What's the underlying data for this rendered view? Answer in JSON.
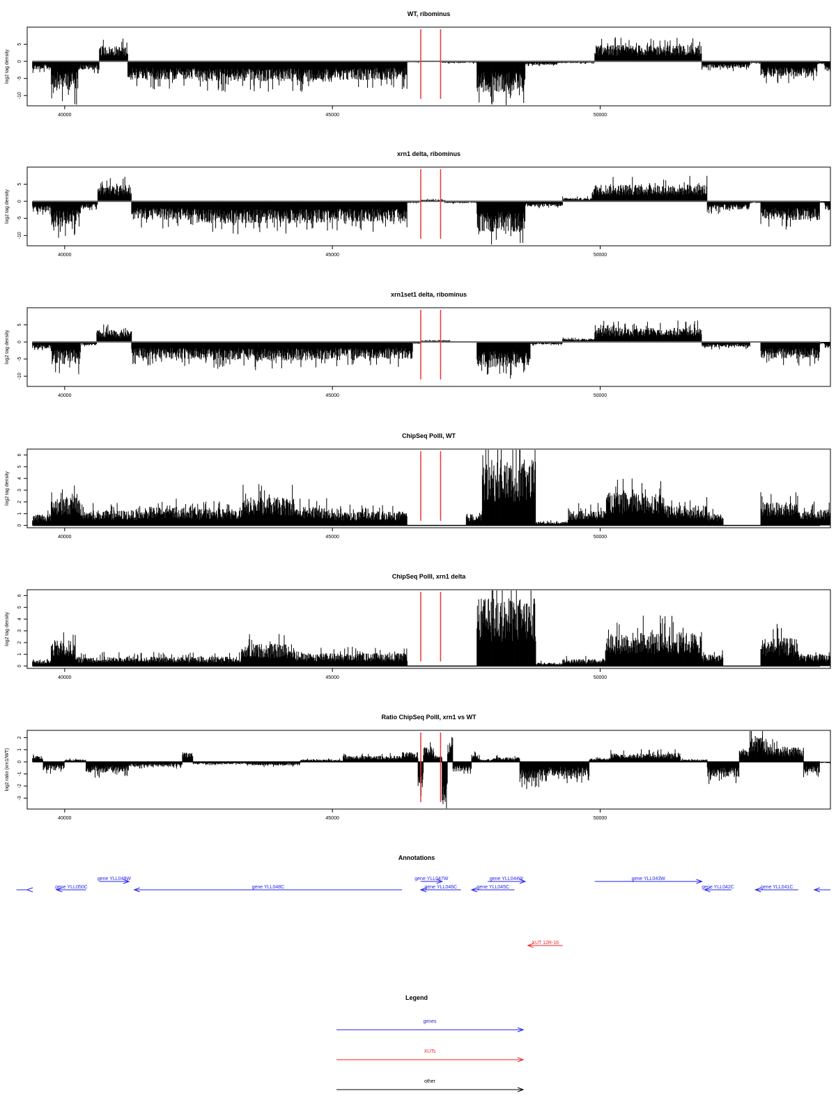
{
  "colors": {
    "signal": "#000000",
    "marker": "#ee3333",
    "genes": "#2222ee",
    "xuts": "#ee2222",
    "other": "#000000",
    "baseline": "#666666"
  },
  "chart_data": [
    {
      "type": "area",
      "title": "WT, ribominus",
      "ylabel": "log2 tag density",
      "xlim": [
        39300,
        54300
      ],
      "ylim": [
        -13,
        10
      ],
      "yticks": [
        "5",
        "0",
        "-5",
        "-10"
      ],
      "ytick_values": [
        5,
        0,
        -5,
        -10
      ],
      "xticks": [
        "40000",
        "45000",
        "50000"
      ],
      "xtick_values": [
        40000,
        45000,
        50000
      ],
      "marker_lines": [
        46650,
        47020
      ],
      "x_range": [
        39400,
        54400
      ],
      "segments": [
        [
          39400,
          39750,
          -2.5
        ],
        [
          39750,
          40250,
          -8.5
        ],
        [
          40250,
          40650,
          -2.5
        ],
        [
          40650,
          41180,
          4.5
        ],
        [
          41180,
          42500,
          -5.5
        ],
        [
          42500,
          45000,
          -6
        ],
        [
          45000,
          46400,
          -5.5
        ],
        [
          46400,
          46650,
          -0.3
        ],
        [
          46650,
          47050,
          0
        ],
        [
          47050,
          47700,
          -0.5
        ],
        [
          47700,
          48600,
          -9
        ],
        [
          48600,
          49200,
          -1
        ],
        [
          49200,
          49900,
          -0.5
        ],
        [
          49900,
          51900,
          4.8
        ],
        [
          51900,
          52800,
          -2
        ],
        [
          52800,
          53000,
          -0.5
        ],
        [
          53000,
          54050,
          -4.5
        ],
        [
          54050,
          54200,
          -0.8
        ],
        [
          54200,
          54400,
          -3
        ]
      ]
    },
    {
      "type": "area",
      "title": "xrn1 delta, ribominus",
      "ylabel": "log2 tag density",
      "xlim": [
        39300,
        54300
      ],
      "ylim": [
        -13,
        10
      ],
      "yticks": [
        "5",
        "0",
        "-5",
        "-10"
      ],
      "ytick_values": [
        5,
        0,
        -5,
        -10
      ],
      "xticks": [
        "40000",
        "45000",
        "50000"
      ],
      "xtick_values": [
        40000,
        45000,
        50000
      ],
      "marker_lines": [
        46650,
        47020
      ],
      "x_range": [
        39400,
        54400
      ],
      "segments": [
        [
          39400,
          39750,
          -3.5
        ],
        [
          39750,
          40300,
          -7.5
        ],
        [
          40300,
          40620,
          -2
        ],
        [
          40620,
          41250,
          4.8
        ],
        [
          41250,
          42500,
          -5.5
        ],
        [
          42500,
          45000,
          -6.5
        ],
        [
          45000,
          46400,
          -6
        ],
        [
          46400,
          46650,
          -0.5
        ],
        [
          46650,
          47100,
          0.5
        ],
        [
          47100,
          47700,
          -0.5
        ],
        [
          47700,
          48600,
          -9
        ],
        [
          48600,
          49300,
          -1.5
        ],
        [
          49300,
          49850,
          1
        ],
        [
          49850,
          52000,
          5
        ],
        [
          52000,
          52800,
          -2.5
        ],
        [
          52800,
          53000,
          -0.5
        ],
        [
          53000,
          54100,
          -5.5
        ],
        [
          54100,
          54200,
          -0.5
        ],
        [
          54200,
          54400,
          -2.5
        ]
      ]
    },
    {
      "type": "area",
      "title": "xrn1set1 delta, ribominus",
      "ylabel": "log2 tag density",
      "xlim": [
        39300,
        54300
      ],
      "ylim": [
        -13,
        10
      ],
      "yticks": [
        "5",
        "0",
        "-5",
        "-10"
      ],
      "ytick_values": [
        5,
        0,
        -5,
        -10
      ],
      "xticks": [
        "40000",
        "45000",
        "50000"
      ],
      "xtick_values": [
        40000,
        45000,
        50000
      ],
      "marker_lines": [
        46650,
        47020
      ],
      "x_range": [
        39400,
        54400
      ],
      "segments": [
        [
          39400,
          39750,
          -2
        ],
        [
          39750,
          40300,
          -6.5
        ],
        [
          40300,
          40600,
          -1
        ],
        [
          40600,
          41250,
          3.5
        ],
        [
          41250,
          42500,
          -5
        ],
        [
          42500,
          45000,
          -5.5
        ],
        [
          45000,
          46500,
          -5
        ],
        [
          46500,
          46650,
          -0.5
        ],
        [
          46650,
          47200,
          0.5
        ],
        [
          47200,
          47700,
          0
        ],
        [
          47700,
          48700,
          -7.5
        ],
        [
          48700,
          49300,
          -0.8
        ],
        [
          49300,
          49900,
          1
        ],
        [
          49900,
          51900,
          4.2
        ],
        [
          51900,
          52800,
          -1.5
        ],
        [
          52800,
          53000,
          0
        ],
        [
          53000,
          54100,
          -5
        ],
        [
          54100,
          54200,
          -0.5
        ],
        [
          54200,
          54400,
          -2
        ]
      ]
    },
    {
      "type": "area",
      "title": "ChipSeq PolII, WT",
      "ylabel": "log2 tag density",
      "xlim": [
        39300,
        54300
      ],
      "ylim": [
        -0.2,
        6.5
      ],
      "yticks": [
        "0",
        "1",
        "2",
        "3",
        "4",
        "5",
        "6"
      ],
      "ytick_values": [
        0,
        1,
        2,
        3,
        4,
        5,
        6
      ],
      "xticks": [
        "40000",
        "45000",
        "50000"
      ],
      "xtick_values": [
        40000,
        45000,
        50000
      ],
      "marker_lines": [
        46650,
        47020
      ],
      "x_range": [
        39400,
        54400
      ],
      "segments": [
        [
          39400,
          39750,
          1
        ],
        [
          39750,
          40300,
          2.5
        ],
        [
          40300,
          41500,
          1.3
        ],
        [
          41500,
          42500,
          1.6
        ],
        [
          42500,
          43300,
          1.4
        ],
        [
          43300,
          44300,
          2.4
        ],
        [
          44300,
          45000,
          1.6
        ],
        [
          45000,
          46400,
          1.2
        ],
        [
          46400,
          47500,
          0
        ],
        [
          47500,
          47800,
          1
        ],
        [
          47800,
          48800,
          5.6
        ],
        [
          48800,
          49400,
          0.3
        ],
        [
          49400,
          50100,
          1.3
        ],
        [
          50100,
          51200,
          2.8
        ],
        [
          51200,
          52000,
          1.7
        ],
        [
          52000,
          52300,
          1
        ],
        [
          52300,
          53000,
          0
        ],
        [
          53000,
          53700,
          2
        ],
        [
          53700,
          54400,
          1.4
        ]
      ]
    },
    {
      "type": "area",
      "title": "ChipSeq PolII, xrn1 delta",
      "ylabel": "log2 tag density",
      "xlim": [
        39300,
        54300
      ],
      "ylim": [
        -0.2,
        6.5
      ],
      "yticks": [
        "0",
        "1",
        "2",
        "3",
        "4",
        "5",
        "6"
      ],
      "ytick_values": [
        0,
        1,
        2,
        3,
        4,
        5,
        6
      ],
      "xticks": [
        "40000",
        "45000",
        "50000"
      ],
      "xtick_values": [
        40000,
        45000,
        50000
      ],
      "marker_lines": [
        46650,
        47020
      ],
      "x_range": [
        39400,
        54400
      ],
      "segments": [
        [
          39400,
          39750,
          0.5
        ],
        [
          39750,
          40200,
          2.2
        ],
        [
          40200,
          43300,
          0.8
        ],
        [
          43300,
          44300,
          1.9
        ],
        [
          44300,
          46400,
          1.1
        ],
        [
          46400,
          47700,
          0
        ],
        [
          47700,
          48800,
          5.8
        ],
        [
          48800,
          49300,
          0.3
        ],
        [
          49300,
          50100,
          0.6
        ],
        [
          50100,
          51900,
          2.9
        ],
        [
          51900,
          52300,
          1
        ],
        [
          52300,
          53000,
          0
        ],
        [
          53000,
          53700,
          2.4
        ],
        [
          53700,
          54400,
          1
        ]
      ]
    },
    {
      "type": "area",
      "title": "Ratio ChipSeq PolII, xrn1 vs WT",
      "ylabel": "log2 ratio (xrn1/WT)",
      "xlim": [
        39300,
        54300
      ],
      "ylim": [
        -3.9,
        2.6
      ],
      "yticks": [
        "2",
        "1",
        "0",
        "-1",
        "-2",
        "-3"
      ],
      "ytick_values": [
        2,
        1,
        0,
        -1,
        -2,
        -3
      ],
      "xticks": [
        "40000",
        "45000",
        "50000"
      ],
      "xtick_values": [
        40000,
        45000,
        50000
      ],
      "marker_lines": [
        46650,
        47020
      ],
      "x_range": [
        39400,
        54400
      ],
      "segments": [
        [
          39400,
          39600,
          0.5
        ],
        [
          39600,
          40000,
          -0.7
        ],
        [
          40000,
          40400,
          0.2
        ],
        [
          40400,
          41200,
          -0.9
        ],
        [
          41200,
          42200,
          -0.4
        ],
        [
          42200,
          42400,
          0.8
        ],
        [
          42400,
          43500,
          -0.2
        ],
        [
          43500,
          44400,
          -0.3
        ],
        [
          44400,
          45200,
          0.2
        ],
        [
          45200,
          46300,
          0.5
        ],
        [
          46300,
          46600,
          0.8
        ],
        [
          46600,
          46700,
          -2.3
        ],
        [
          46700,
          46900,
          1.3
        ],
        [
          46900,
          47050,
          0.5
        ],
        [
          47050,
          47150,
          -3.7
        ],
        [
          47150,
          47250,
          1.6
        ],
        [
          47250,
          47600,
          -0.8
        ],
        [
          47600,
          47750,
          0.6
        ],
        [
          47750,
          48000,
          0.2
        ],
        [
          48000,
          48500,
          0.4
        ],
        [
          48500,
          49000,
          -1.7
        ],
        [
          49000,
          49800,
          -1.2
        ],
        [
          49800,
          50200,
          0.3
        ],
        [
          50200,
          51500,
          0.7
        ],
        [
          51500,
          52000,
          0.2
        ],
        [
          52000,
          52600,
          -1.3
        ],
        [
          52600,
          52800,
          1.2
        ],
        [
          52800,
          53100,
          2.2
        ],
        [
          53100,
          53800,
          1.3
        ],
        [
          53800,
          54100,
          -1
        ],
        [
          54100,
          54400,
          -0.1
        ]
      ]
    }
  ],
  "annotations": {
    "title": "Annotations",
    "features": [
      {
        "label": "",
        "start": 38300,
        "end": 39100,
        "strand": "-",
        "row": 1,
        "kind": "gene"
      },
      {
        "label": "gene YLL050C",
        "start": 39850,
        "end": 40400,
        "strand": "-",
        "row": 1,
        "kind": "gene"
      },
      {
        "label": "gene YLL049W",
        "start": 40650,
        "end": 41200,
        "strand": "+",
        "row": 0,
        "kind": "gene"
      },
      {
        "label": "gene YLL048C",
        "start": 41300,
        "end": 46300,
        "strand": "-",
        "row": 1,
        "kind": "gene"
      },
      {
        "label": "gene YLL047W",
        "start": 46650,
        "end": 47050,
        "strand": "+",
        "row": 0,
        "kind": "gene"
      },
      {
        "label": "gene YLL046C",
        "start": 46650,
        "end": 47400,
        "strand": "-",
        "row": 1,
        "kind": "gene"
      },
      {
        "label": "gene YLL045C",
        "start": 47600,
        "end": 48400,
        "strand": "-",
        "row": 1,
        "kind": "gene"
      },
      {
        "label": "gene YLL044W",
        "start": 47900,
        "end": 48600,
        "strand": "+",
        "row": 0,
        "kind": "gene"
      },
      {
        "label": "gene YLL043W",
        "start": 49900,
        "end": 51900,
        "strand": "+",
        "row": 0,
        "kind": "gene"
      },
      {
        "label": "gene YLL042C",
        "start": 51950,
        "end": 52450,
        "strand": "-",
        "row": 1,
        "kind": "gene"
      },
      {
        "label": "gene YLL041C",
        "start": 52900,
        "end": 53700,
        "strand": "-",
        "row": 1,
        "kind": "gene"
      },
      {
        "label": "",
        "start": 54000,
        "end": 54800,
        "strand": "-",
        "row": 1,
        "kind": "gene"
      },
      {
        "label": "XUT 12R-16",
        "start": 48650,
        "end": 49300,
        "strand": "-",
        "row": 2,
        "kind": "xut"
      }
    ]
  },
  "legend": {
    "title": "Legend",
    "items": [
      {
        "label": "genes",
        "kind": "gene"
      },
      {
        "label": "XUTs",
        "kind": "xut"
      },
      {
        "label": "other",
        "kind": "other"
      }
    ]
  }
}
